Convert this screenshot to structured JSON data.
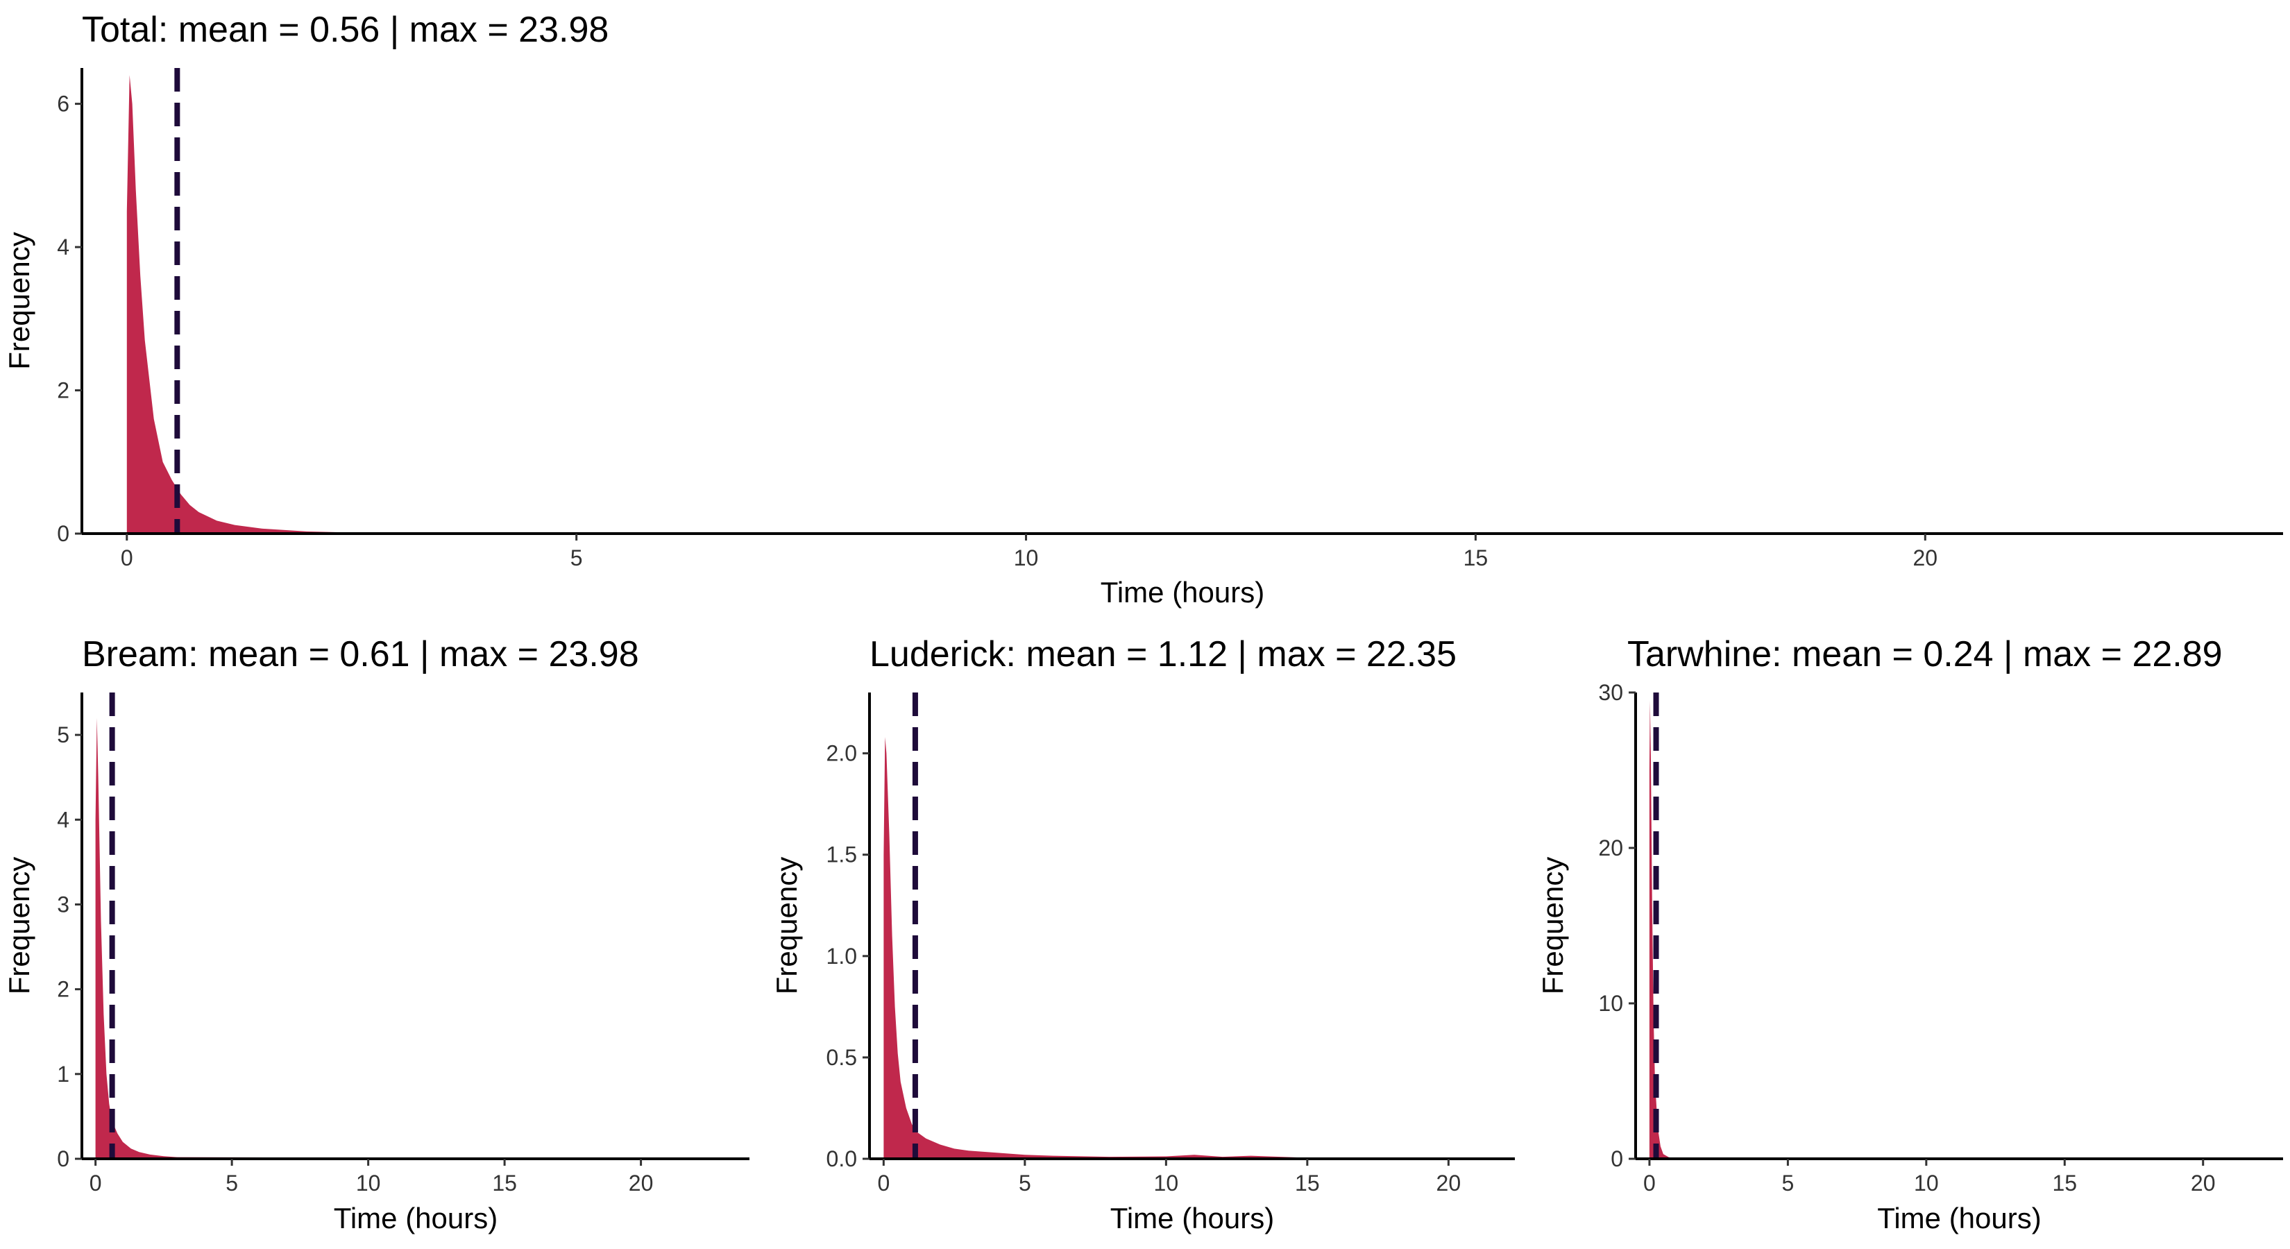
{
  "colors": {
    "fill": "#C0284C",
    "mean_line": "#1E0B3A",
    "axis": "#000000",
    "tick_text": "#333333"
  },
  "chart_data": [
    {
      "type": "area",
      "panel": "total",
      "title": "Total: mean = 0.56 | max = 23.98",
      "xlabel": "Time (hours)",
      "ylabel": "Frequency",
      "xlim": [
        -0.5,
        23.98
      ],
      "ylim": [
        0,
        6.5
      ],
      "xticks": [
        0,
        5,
        10,
        15,
        20
      ],
      "yticks": [
        0,
        2,
        4,
        6
      ],
      "ytick_labels": [
        "0",
        "2",
        "4",
        "6"
      ],
      "mean": 0.56,
      "x": [
        0,
        0.03,
        0.06,
        0.1,
        0.15,
        0.2,
        0.3,
        0.4,
        0.5,
        0.6,
        0.7,
        0.8,
        1.0,
        1.2,
        1.5,
        2.0,
        2.5,
        3.0,
        4.0,
        23.98
      ],
      "y": [
        4.5,
        6.4,
        6.0,
        4.8,
        3.6,
        2.7,
        1.6,
        1.0,
        0.75,
        0.55,
        0.4,
        0.3,
        0.18,
        0.12,
        0.07,
        0.03,
        0.015,
        0.01,
        0.005,
        0
      ],
      "grid": false
    },
    {
      "type": "area",
      "panel": "bream",
      "title": "Bream: mean = 0.61 | max = 23.98",
      "xlabel": "Time (hours)",
      "ylabel": "Frequency",
      "xlim": [
        -0.5,
        23.98
      ],
      "ylim": [
        0,
        5.5
      ],
      "xticks": [
        0,
        5,
        10,
        15,
        20
      ],
      "yticks": [
        0,
        1,
        2,
        3,
        4,
        5
      ],
      "ytick_labels": [
        "0",
        "1",
        "2",
        "3",
        "4",
        "5"
      ],
      "mean": 0.61,
      "x": [
        0,
        0.05,
        0.1,
        0.2,
        0.3,
        0.4,
        0.5,
        0.6,
        0.8,
        1.0,
        1.3,
        1.6,
        2.0,
        2.5,
        3.0,
        23.98
      ],
      "y": [
        4.0,
        5.2,
        4.5,
        2.8,
        1.7,
        1.0,
        0.65,
        0.45,
        0.3,
        0.2,
        0.12,
        0.08,
        0.05,
        0.03,
        0.02,
        0
      ],
      "grid": false
    },
    {
      "type": "area",
      "panel": "luderick",
      "title": "Luderick: mean = 1.12 | max = 22.35",
      "xlabel": "Time (hours)",
      "ylabel": "Frequency",
      "xlim": [
        -0.5,
        22.35
      ],
      "ylim": [
        0,
        2.3
      ],
      "xticks": [
        0,
        5,
        10,
        15,
        20
      ],
      "yticks": [
        0,
        0.5,
        1,
        1.5,
        2
      ],
      "ytick_labels": [
        "0.0",
        "0.5",
        "1.0",
        "1.5",
        "2.0"
      ],
      "mean": 1.12,
      "x": [
        0,
        0.05,
        0.1,
        0.2,
        0.3,
        0.4,
        0.5,
        0.6,
        0.8,
        1.0,
        1.2,
        1.5,
        2.0,
        2.5,
        3.0,
        4.0,
        5.0,
        6.0,
        8.0,
        10.0,
        11.0,
        12.0,
        13.0,
        15.0,
        22.35
      ],
      "y": [
        1.5,
        2.08,
        2.0,
        1.6,
        1.1,
        0.75,
        0.52,
        0.38,
        0.25,
        0.17,
        0.13,
        0.1,
        0.07,
        0.05,
        0.04,
        0.03,
        0.02,
        0.015,
        0.01,
        0.012,
        0.02,
        0.01,
        0.015,
        0.005,
        0
      ],
      "grid": false
    },
    {
      "type": "area",
      "panel": "tarwhine",
      "title": "Tarwhine: mean = 0.24 | max = 22.89",
      "xlabel": "Time (hours)",
      "ylabel": "Frequency",
      "xlim": [
        -0.5,
        22.89
      ],
      "ylim": [
        0,
        30
      ],
      "xticks": [
        0,
        5,
        10,
        15,
        20
      ],
      "yticks": [
        0,
        10,
        20,
        30
      ],
      "ytick_labels": [
        "0",
        "10",
        "20",
        "30"
      ],
      "mean": 0.24,
      "x": [
        0,
        0.02,
        0.05,
        0.1,
        0.15,
        0.2,
        0.3,
        0.4,
        0.5,
        0.7,
        1.0,
        22.89
      ],
      "y": [
        25,
        29.5,
        26,
        16,
        9,
        5,
        2,
        0.8,
        0.3,
        0.1,
        0.03,
        0
      ],
      "grid": false
    }
  ]
}
